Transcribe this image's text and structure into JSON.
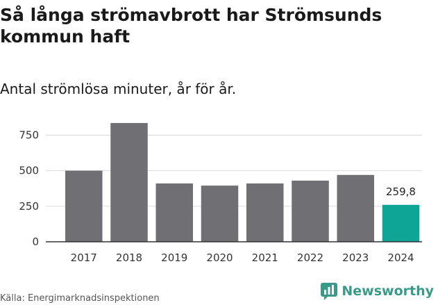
{
  "header": {
    "title": "Så långa strömavbrott har Strömsunds kommun haft",
    "subtitle": "Antal strömlösa minuter, år för år."
  },
  "footer": {
    "source": "Källa: Energimarknadsinspektionen",
    "brand": "Newsworthy"
  },
  "colors": {
    "bar": "#706f73",
    "highlight": "#0fa596",
    "grid": "#d9d9d9",
    "axis": "#333333",
    "brand": "#3a9a8a"
  },
  "chart_data": {
    "type": "bar",
    "title": "Så långa strömavbrott har Strömsunds kommun haft",
    "subtitle": "Antal strömlösa minuter, år för år.",
    "xlabel": "",
    "ylabel": "",
    "categories": [
      "2017",
      "2018",
      "2019",
      "2020",
      "2021",
      "2022",
      "2023",
      "2024"
    ],
    "values": [
      500,
      835,
      410,
      395,
      410,
      430,
      470,
      259.8
    ],
    "highlight_index": 7,
    "data_labels": [
      {
        "index": 7,
        "text": "259,8"
      }
    ],
    "yticks": [
      0,
      250,
      500,
      750
    ],
    "ylim": [
      0,
      850
    ],
    "grid": true
  }
}
